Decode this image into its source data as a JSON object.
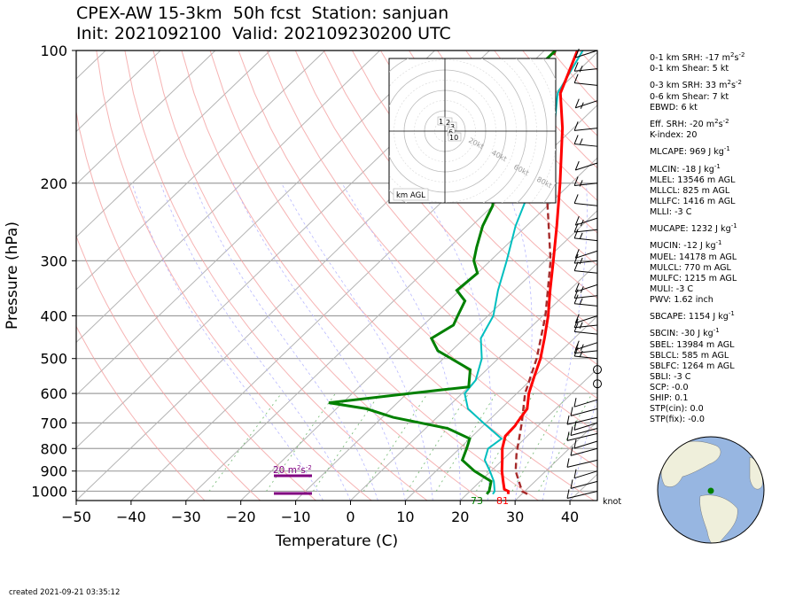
{
  "title_line1": "CPEX-AW 15-3km  50h fcst  Station: sanjuan",
  "title_line2": "Init: 2021092100  Valid: 202109230200 UTC",
  "created": "created 2021-09-21 03:35:12",
  "indices": [
    {
      "label": "0-1 km SRH: -17 m",
      "sup": "2",
      "tail": "s",
      "sup2": "-2"
    },
    {
      "label": "0-1 km Shear: 5 kt"
    },
    {
      "label": "0-3 km SRH: 33 m",
      "sup": "2",
      "tail": "s",
      "sup2": "-2",
      "gap": true
    },
    {
      "label": "0-6 km Shear: 7 kt"
    },
    {
      "label": "EBWD: 6 kt"
    },
    {
      "label": "Eff. SRH: -20 m",
      "sup": "2",
      "tail": "s",
      "sup2": "-2",
      "gap": true
    },
    {
      "label": "K-index: 20"
    },
    {
      "label": "MLCAPE: 969 J kg",
      "sup": "-1",
      "gap": true
    },
    {
      "label": "MLCIN: -18 J kg",
      "sup": "-1",
      "gap": true
    },
    {
      "label": "MLEL: 13546 m AGL"
    },
    {
      "label": "MLLCL: 825 m AGL"
    },
    {
      "label": "MLLFC: 1416 m AGL"
    },
    {
      "label": "MLLI: -3 C"
    },
    {
      "label": "MUCAPE: 1232 J kg",
      "sup": "-1",
      "gap": true
    },
    {
      "label": "MUCIN: -12 J kg",
      "sup": "-1",
      "gap": true
    },
    {
      "label": "MUEL: 14178 m AGL"
    },
    {
      "label": "MULCL: 770 m AGL"
    },
    {
      "label": "MULFC: 1215 m AGL"
    },
    {
      "label": "MULI: -3 C"
    },
    {
      "label": "PWV: 1.62 inch"
    },
    {
      "label": "SBCAPE: 1154 J kg",
      "sup": "-1",
      "gap": true
    },
    {
      "label": "SBCIN: -30 J kg",
      "sup": "-1",
      "gap": true
    },
    {
      "label": "SBEL: 13984 m AGL"
    },
    {
      "label": "SBLCL: 585 m AGL"
    },
    {
      "label": "SBLFC: 1264 m AGL"
    },
    {
      "label": "SBLI: -3 C"
    },
    {
      "label": "SCP: -0.0"
    },
    {
      "label": "SHIP: 0.1"
    },
    {
      "label": "STP(cin): 0.0"
    },
    {
      "label": "STP(fix): -0.0"
    }
  ],
  "chart_data": {
    "type": "line",
    "xlabel": "Temperature (C)",
    "ylabel": "Pressure (hPa)",
    "xlim": [
      -50,
      45
    ],
    "ylim": [
      1050,
      100
    ],
    "x_ticks": [
      -50,
      -40,
      -30,
      -20,
      -10,
      0,
      10,
      20,
      30,
      40
    ],
    "y_ticks": [
      1000,
      900,
      800,
      700,
      600,
      500,
      400,
      300,
      200,
      100
    ],
    "y_scale": "log",
    "skew": true,
    "colors": {
      "temperature": "#ff0000",
      "dewpoint": "#008000",
      "wetbulb": "#00bfbf",
      "parcel": "#a52a2a",
      "srh": "#800080"
    },
    "temperature": [
      [
        1015,
        27.5
      ],
      [
        1000,
        27
      ],
      [
        990,
        25.9
      ],
      [
        950,
        24.2
      ],
      [
        900,
        22
      ],
      [
        850,
        20
      ],
      [
        800,
        17.8
      ],
      [
        750,
        16
      ],
      [
        710,
        15.8
      ],
      [
        700,
        15.6
      ],
      [
        650,
        14.8
      ],
      [
        600,
        12.2
      ],
      [
        550,
        10
      ],
      [
        500,
        7.7
      ],
      [
        450,
        4.6
      ],
      [
        400,
        1
      ],
      [
        350,
        -3.5
      ],
      [
        300,
        -8.5
      ],
      [
        250,
        -14.5
      ],
      [
        200,
        -22
      ],
      [
        150,
        -32
      ],
      [
        125,
        -39
      ],
      [
        100,
        -44
      ]
    ],
    "wetbulb": [
      [
        1015,
        24.7
      ],
      [
        1000,
        24.5
      ],
      [
        950,
        22.5
      ],
      [
        900,
        19.8
      ],
      [
        850,
        16.8
      ],
      [
        800,
        15.2
      ],
      [
        760,
        15.8
      ],
      [
        700,
        9.5
      ],
      [
        650,
        4
      ],
      [
        600,
        0.5
      ],
      [
        560,
        0
      ],
      [
        500,
        -3
      ],
      [
        450,
        -7
      ],
      [
        400,
        -9
      ],
      [
        350,
        -13
      ],
      [
        300,
        -17
      ],
      [
        250,
        -22
      ],
      [
        200,
        -27
      ],
      [
        150,
        -33.5
      ],
      [
        125,
        -39.5
      ],
      [
        100,
        -43
      ]
    ],
    "dewpoint": [
      [
        1015,
        23.6
      ],
      [
        1000,
        23.5
      ],
      [
        950,
        22
      ],
      [
        900,
        17
      ],
      [
        850,
        12.7
      ],
      [
        800,
        11.3
      ],
      [
        760,
        10
      ],
      [
        720,
        4
      ],
      [
        680,
        -8
      ],
      [
        650,
        -14.5
      ],
      [
        630,
        -22.5
      ],
      [
        590,
        -5
      ],
      [
        580,
        0
      ],
      [
        530,
        -3
      ],
      [
        480,
        -12.5
      ],
      [
        450,
        -16
      ],
      [
        420,
        -14.5
      ],
      [
        400,
        -15.5
      ],
      [
        370,
        -17
      ],
      [
        350,
        -20.5
      ],
      [
        320,
        -20
      ],
      [
        300,
        -23
      ],
      [
        280,
        -25
      ],
      [
        250,
        -28
      ],
      [
        225,
        -30
      ],
      [
        200,
        -34
      ],
      [
        180,
        -32
      ],
      [
        150,
        -39
      ],
      [
        125,
        -46
      ],
      [
        110,
        -48
      ],
      [
        100,
        -48
      ]
    ],
    "parcel": [
      [
        1015,
        31
      ],
      [
        1000,
        29.5
      ],
      [
        900,
        24.5
      ],
      [
        825,
        21.5
      ],
      [
        700,
        16.5
      ],
      [
        600,
        11.5
      ],
      [
        500,
        7
      ],
      [
        400,
        0.5
      ],
      [
        300,
        -9
      ],
      [
        200,
        -24.5
      ],
      [
        150,
        -35
      ],
      [
        125,
        -42
      ],
      [
        100,
        -48
      ]
    ],
    "surface_labels": [
      {
        "text": "73",
        "color": "#008000"
      },
      {
        "text": "81",
        "color": "#ff0000"
      }
    ],
    "srh_bars": [
      {
        "label": "20 m",
        "sup": "2",
        "tail": "s",
        "sup2": "-2"
      }
    ],
    "barb_unit": "knot",
    "hodograph_labels": [
      "1",
      "2",
      "3",
      "6",
      "10"
    ],
    "hodograph_rings": [
      "20kt",
      "40kt",
      "60kt",
      "80kt"
    ],
    "hodograph_box_label": "km AGL",
    "station_marker_color": "#008000"
  }
}
